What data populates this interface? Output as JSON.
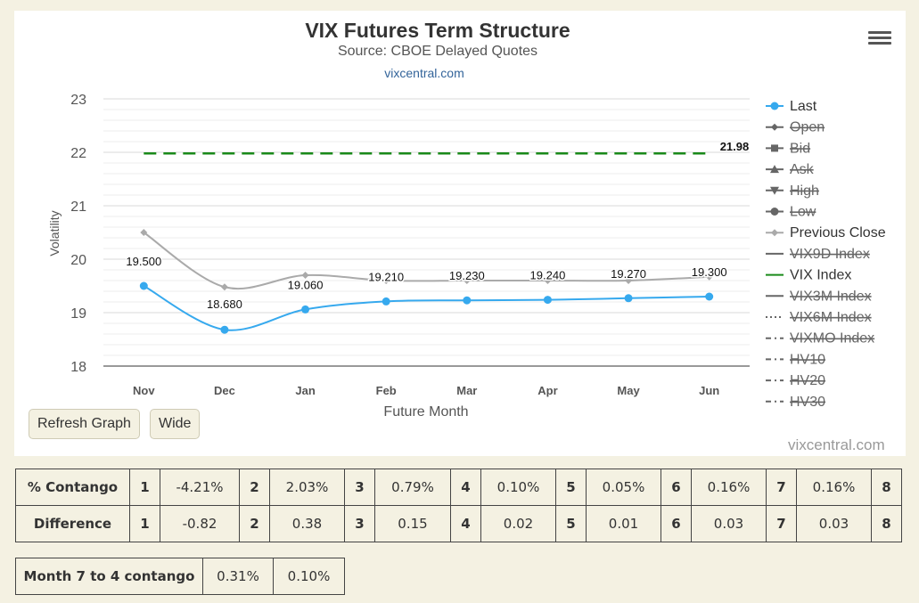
{
  "menu_icon": "hamburger-menu-icon",
  "buttons": {
    "refresh": "Refresh Graph",
    "wide": "Wide"
  },
  "credit_bottom": "vixcentral.com",
  "chart_data": {
    "type": "line",
    "title": "VIX Futures Term Structure",
    "subtitle": "Source: CBOE Delayed Quotes",
    "credit": "vixcentral.com",
    "xlabel": "Future Month",
    "ylabel": "Volatility",
    "categories": [
      "Nov",
      "Dec",
      "Jan",
      "Feb",
      "Mar",
      "Apr",
      "May",
      "Jun"
    ],
    "ylim": [
      18,
      23
    ],
    "yticks": [
      18,
      19,
      20,
      21,
      22,
      23
    ],
    "grid": true,
    "legend_position": "right",
    "series": [
      {
        "name": "Last",
        "values": [
          19.5,
          18.68,
          19.06,
          19.21,
          19.23,
          19.24,
          19.27,
          19.3
        ],
        "labels": [
          "19.500",
          "18.680",
          "19.060",
          "19.210",
          "19.230",
          "19.240",
          "19.270",
          "19.300"
        ],
        "color": "#36a9ee",
        "visible": true
      },
      {
        "name": "Previous Close",
        "values": [
          20.5,
          19.48,
          19.7,
          19.6,
          19.6,
          19.6,
          19.6,
          19.67
        ],
        "color": "#aaaaaa",
        "visible": true
      },
      {
        "name": "VIX Index",
        "values": [
          21.98,
          21.98,
          21.98,
          21.98,
          21.98,
          21.98,
          21.98,
          21.98
        ],
        "end_label": "21.98",
        "color": "#1a8a1a",
        "visible": true
      }
    ],
    "legend": [
      {
        "name": "Last",
        "symbol": "circle-line",
        "color": "#36a9ee",
        "visible": true
      },
      {
        "name": "Open",
        "symbol": "diamond-line",
        "color": "#666666",
        "visible": false
      },
      {
        "name": "Bid",
        "symbol": "square-line",
        "color": "#666666",
        "visible": false
      },
      {
        "name": "Ask",
        "symbol": "triangle-line",
        "color": "#666666",
        "visible": false
      },
      {
        "name": "High",
        "symbol": "triangle-down-line",
        "color": "#666666",
        "visible": false
      },
      {
        "name": "Low",
        "symbol": "circle-line",
        "color": "#666666",
        "visible": false
      },
      {
        "name": "Previous Close",
        "symbol": "diamond-line",
        "color": "#aaaaaa",
        "visible": true
      },
      {
        "name": "VIX9D Index",
        "symbol": "line",
        "color": "#666666",
        "visible": false
      },
      {
        "name": "VIX Index",
        "symbol": "line",
        "color": "#1a8a1a",
        "visible": true
      },
      {
        "name": "VIX3M Index",
        "symbol": "line",
        "color": "#666666",
        "visible": false
      },
      {
        "name": "VIX6M Index",
        "symbol": "dotted",
        "color": "#666666",
        "visible": false
      },
      {
        "name": "VIXMO Index",
        "symbol": "dashdot",
        "color": "#666666",
        "visible": false
      },
      {
        "name": "HV10",
        "symbol": "dashdot",
        "color": "#666666",
        "visible": false
      },
      {
        "name": "HV20",
        "symbol": "dashdot",
        "color": "#666666",
        "visible": false
      },
      {
        "name": "HV30",
        "symbol": "dashdot",
        "color": "#666666",
        "visible": false
      }
    ]
  },
  "contango_table": {
    "rows": [
      {
        "label": "% Contango",
        "cells": [
          [
            "1",
            "-4.21%"
          ],
          [
            "2",
            "2.03%"
          ],
          [
            "3",
            "0.79%"
          ],
          [
            "4",
            "0.10%"
          ],
          [
            "5",
            "0.05%"
          ],
          [
            "6",
            "0.16%"
          ],
          [
            "7",
            "0.16%"
          ],
          [
            "8",
            ""
          ]
        ]
      },
      {
        "label": "Difference",
        "cells": [
          [
            "1",
            "-0.82"
          ],
          [
            "2",
            "0.38"
          ],
          [
            "3",
            "0.15"
          ],
          [
            "4",
            "0.02"
          ],
          [
            "5",
            "0.01"
          ],
          [
            "6",
            "0.03"
          ],
          [
            "7",
            "0.03"
          ],
          [
            "8",
            ""
          ]
        ]
      }
    ]
  },
  "month_table": {
    "label": "Month 7 to 4 contango",
    "values": [
      "0.31%",
      "0.10%"
    ]
  }
}
